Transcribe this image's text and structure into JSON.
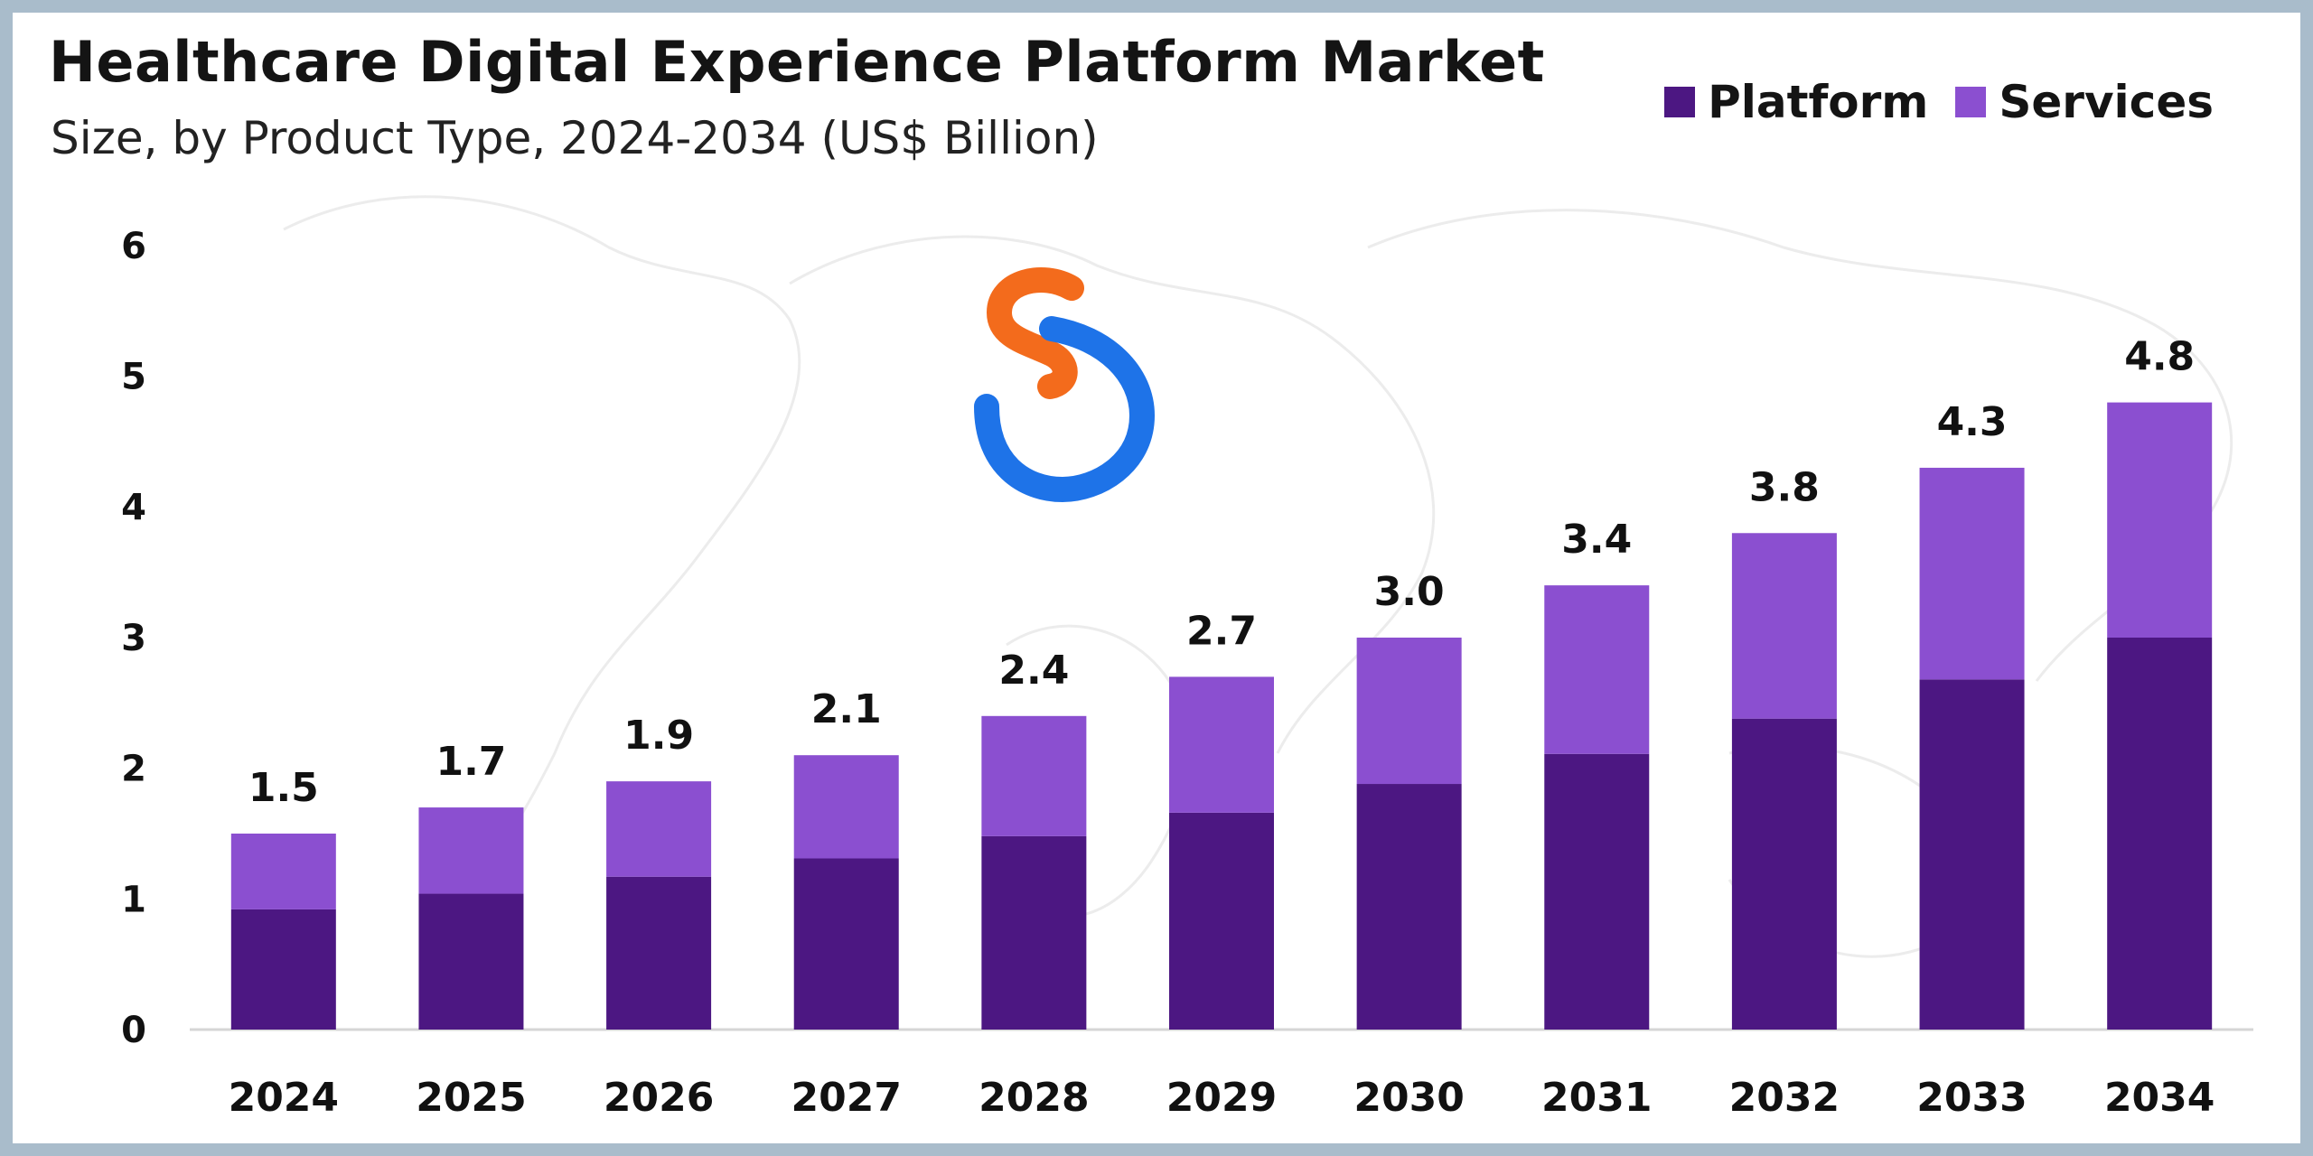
{
  "chart_data": {
    "type": "bar",
    "stacked": true,
    "title": "Healthcare Digital Experience Platform Market",
    "subtitle": "Size, by Product Type, 2024-2034 (US$ Billion)",
    "categories": [
      "2024",
      "2025",
      "2026",
      "2027",
      "2028",
      "2029",
      "2030",
      "2031",
      "2032",
      "2033",
      "2034"
    ],
    "series": [
      {
        "name": "Platform",
        "color": "#4c1782",
        "values": [
          0.92,
          1.04,
          1.17,
          1.31,
          1.48,
          1.66,
          1.88,
          2.11,
          2.38,
          2.68,
          3.0
        ]
      },
      {
        "name": "Services",
        "color": "#8b4fd0",
        "values": [
          0.58,
          0.66,
          0.73,
          0.79,
          0.92,
          1.04,
          1.12,
          1.29,
          1.42,
          1.62,
          1.8
        ]
      }
    ],
    "totals": [
      "1.5",
      "1.7",
      "1.9",
      "2.1",
      "2.4",
      "2.7",
      "3.0",
      "3.4",
      "3.8",
      "4.3",
      "4.8"
    ],
    "total_values": [
      1.5,
      1.7,
      1.9,
      2.1,
      2.4,
      2.7,
      3.0,
      3.4,
      3.8,
      4.3,
      4.8
    ],
    "y_ticks": [
      0,
      1,
      2,
      3,
      4,
      5,
      6
    ],
    "ylim": [
      0,
      6
    ],
    "grid": false,
    "legend_position": "top-right"
  },
  "logo": {
    "name": "brand-logo-icon",
    "colors": [
      "#f7941d",
      "#e8401c",
      "#1e88e5",
      "#1565c0"
    ]
  }
}
